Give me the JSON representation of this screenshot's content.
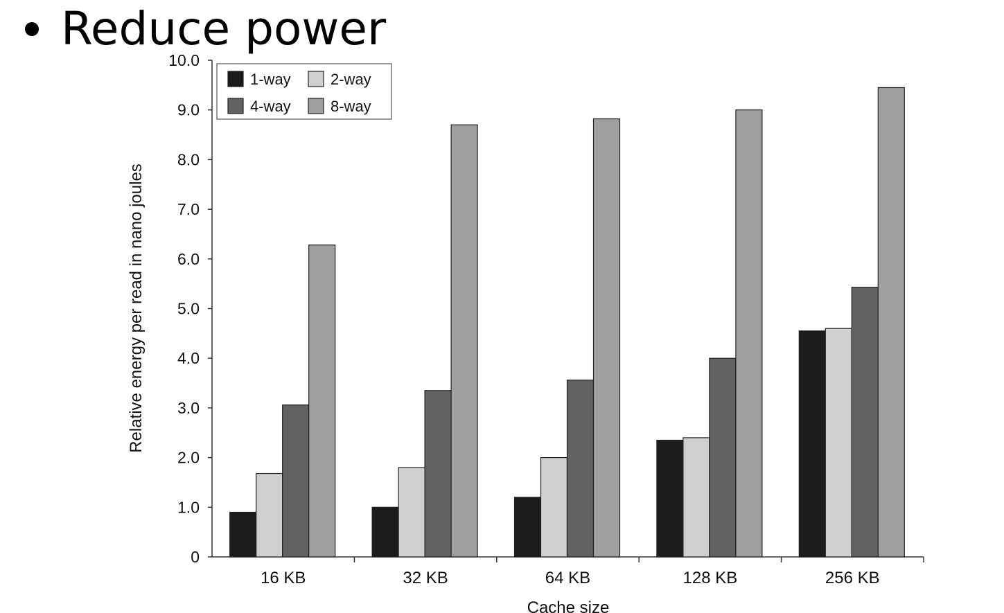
{
  "slide": {
    "bullet_text": "Reduce power"
  },
  "chart_data": {
    "type": "bar",
    "xlabel": "Cache size",
    "ylabel": "Relative energy per read in nano joules",
    "categories": [
      "16 KB",
      "32 KB",
      "64 KB",
      "128 KB",
      "256 KB"
    ],
    "ylim": [
      0,
      10
    ],
    "yticks": [
      "0",
      "1.0",
      "2.0",
      "3.0",
      "4.0",
      "5.0",
      "6.0",
      "7.0",
      "8.0",
      "9.0",
      "10.0"
    ],
    "legend_position": "top-left",
    "grid": false,
    "series": [
      {
        "name": "1-way",
        "color": "#1b1b1b",
        "values": [
          0.9,
          1.0,
          1.2,
          2.35,
          4.55
        ]
      },
      {
        "name": "2-way",
        "color": "#cfcfcf",
        "values": [
          1.68,
          1.8,
          2.0,
          2.4,
          4.6
        ]
      },
      {
        "name": "4-way",
        "color": "#626262",
        "values": [
          3.06,
          3.35,
          3.56,
          4.0,
          5.43
        ]
      },
      {
        "name": "8-way",
        "color": "#9f9f9f",
        "values": [
          6.28,
          8.7,
          8.82,
          9.0,
          9.45
        ]
      }
    ]
  }
}
